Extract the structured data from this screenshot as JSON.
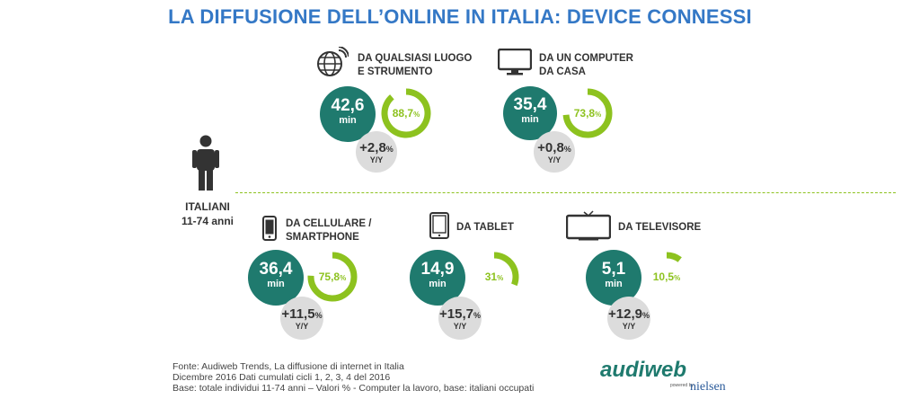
{
  "title": "LA DIFFUSIONE DELL’ONLINE IN ITALIA: DEVICE CONNESSI",
  "population": {
    "label": "ITALIANI",
    "age": "11-74 anni"
  },
  "chart_data": {
    "type": "infographic",
    "title": "LA DIFFUSIONE DELL’ONLINE IN ITALIA: DEVICE CONNESSI",
    "unit_time": "min",
    "unit_yoy": "Y/Y",
    "devices": [
      {
        "label_line1": "DA QUALSIASI LUOGO",
        "label_line2": "E STRUMENTO",
        "icon": "globe-wifi-icon",
        "minutes": "42,6",
        "reach": "88,7",
        "reach_value": 88.7,
        "yoy": "+2,8"
      },
      {
        "label_line1": "DA UN COMPUTER",
        "label_line2": "DA CASA",
        "icon": "desktop-monitor-icon",
        "minutes": "35,4",
        "reach": "73,8",
        "reach_value": 73.8,
        "yoy": "+0,8"
      },
      {
        "label_line1": "DA CELLULARE /",
        "label_line2": "SMARTPHONE",
        "icon": "smartphone-icon",
        "minutes": "36,4",
        "reach": "75,8",
        "reach_value": 75.8,
        "yoy": "+11,5"
      },
      {
        "label_line1": "DA TABLET",
        "label_line2": "",
        "icon": "tablet-icon",
        "minutes": "14,9",
        "reach": "31",
        "reach_value": 31,
        "yoy": "+15,7"
      },
      {
        "label_line1": "DA TELEVISORE",
        "label_line2": "",
        "icon": "television-icon",
        "minutes": "5,1",
        "reach": "10,5",
        "reach_value": 10.5,
        "yoy": "+12,9"
      }
    ]
  },
  "source": {
    "line1": "Fonte: Audiweb Trends, La diffusione di internet in Italia",
    "line2": "Dicembre 2016  Dati cumulati cicli 1, 2, 3, 4 del 2016",
    "line3": "Base: totale individui 11-74 anni – Valori % -  Computer la lavoro, base: italiani occupati"
  },
  "logo": {
    "main": "audiweb",
    "powered": "powered by",
    "partner": "nielsen"
  },
  "colors": {
    "title": "#3478c6",
    "dark": "#1f7a6e",
    "ring": "#8dc21f",
    "grey": "#dcdcdc",
    "text": "#333333"
  }
}
